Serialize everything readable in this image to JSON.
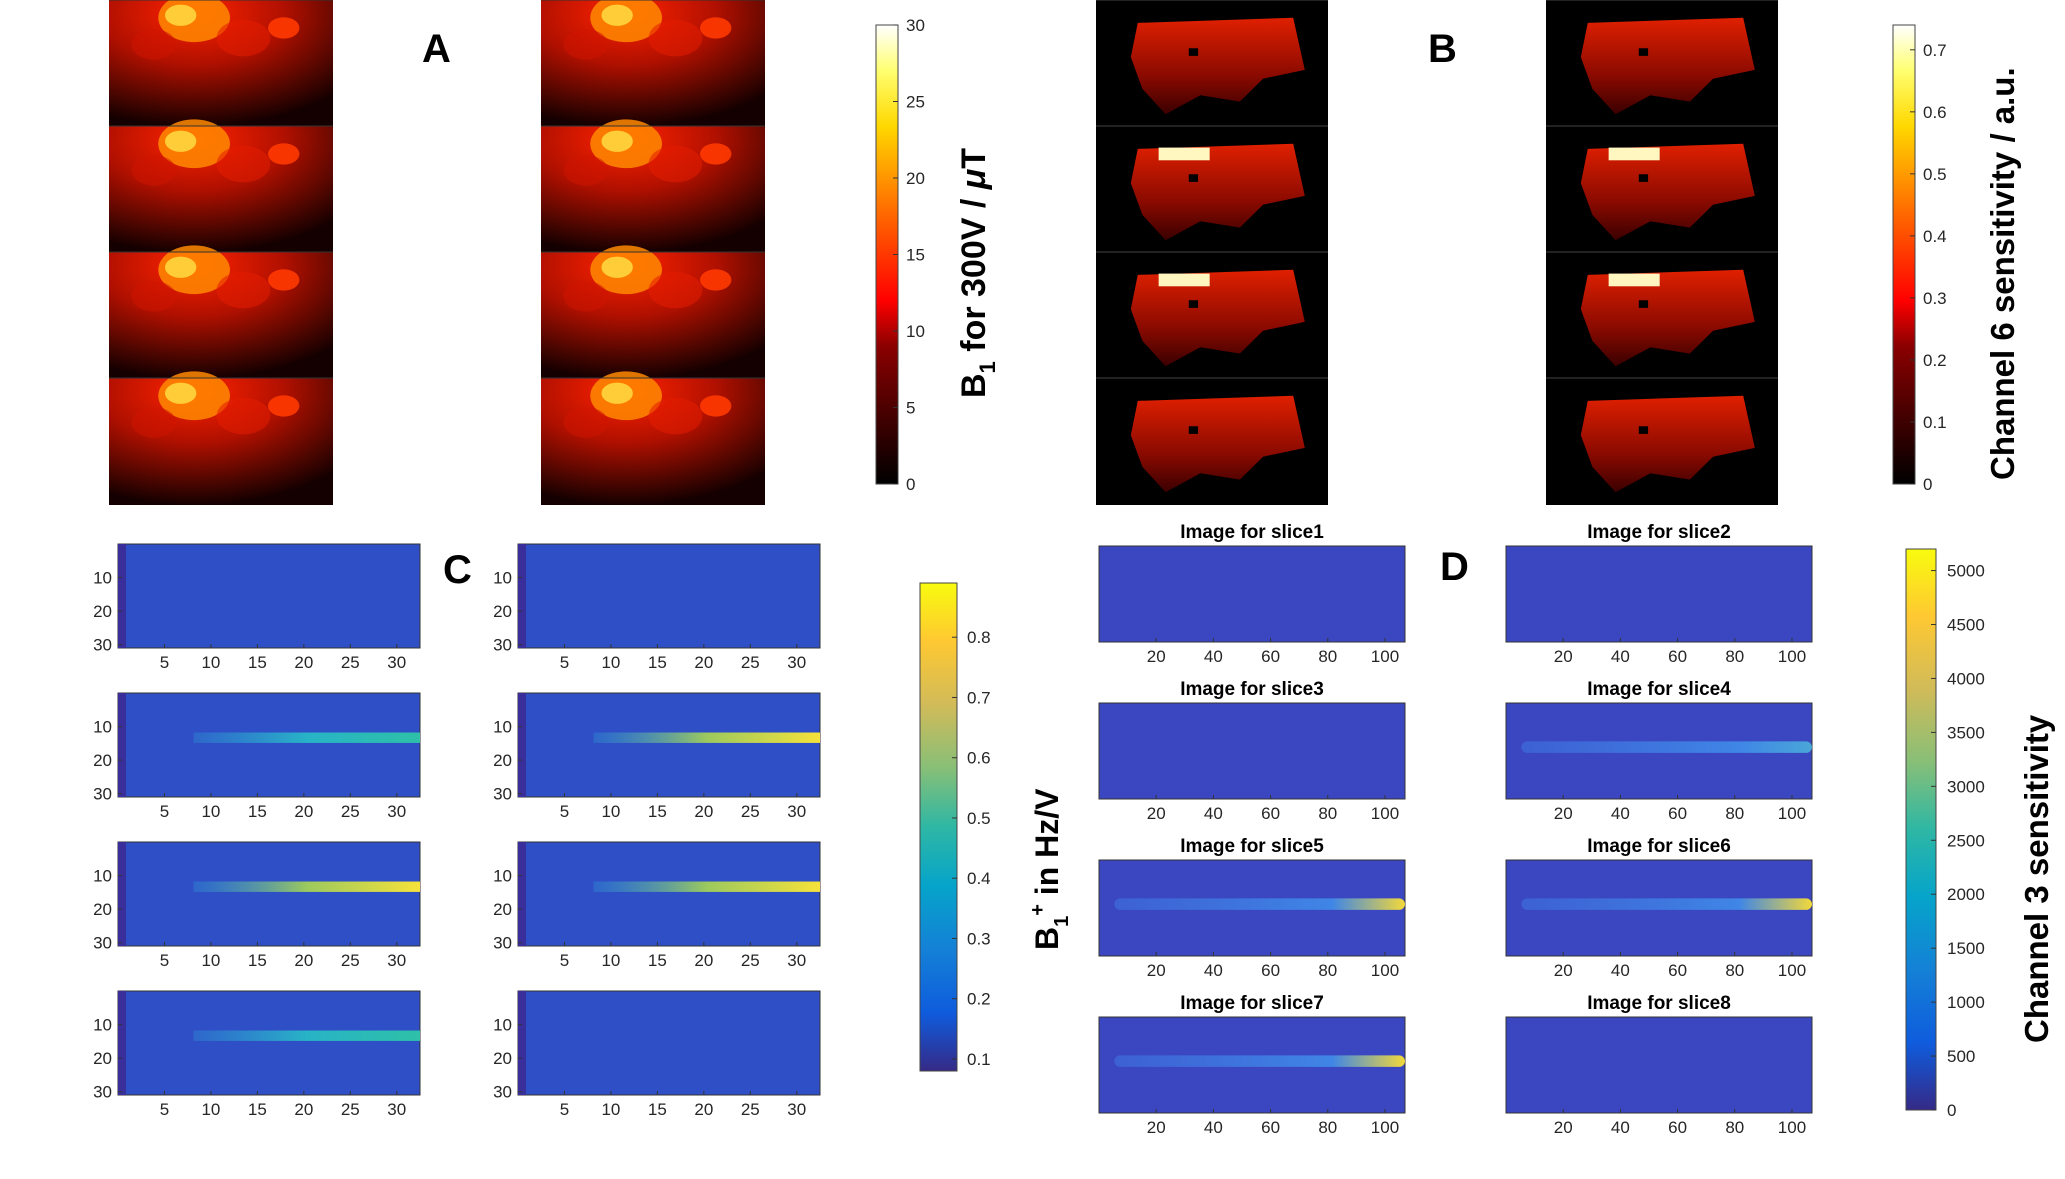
{
  "panels": {
    "A": {
      "letter": "A",
      "colorbar": {
        "ticks": [
          "0",
          "5",
          "10",
          "15",
          "20",
          "25",
          "30"
        ],
        "label_main": "B",
        "label_sub": "1",
        "label_rest": " for 300V /  ",
        "label_mu": "μ",
        "label_unit": "T",
        "range": [
          0,
          30
        ],
        "colormap": "hot"
      }
    },
    "B": {
      "letter": "B",
      "colorbar": {
        "ticks": [
          "0",
          "0.1",
          "0.2",
          "0.3",
          "0.4",
          "0.5",
          "0.6",
          "0.7"
        ],
        "label": "Channel 6 sensitivity / a.u.",
        "range": [
          0,
          0.74
        ],
        "colormap": "hot"
      }
    },
    "C": {
      "letter": "C",
      "x_ticks": [
        "5",
        "10",
        "15",
        "20",
        "25",
        "30"
      ],
      "y_ticks": [
        "10",
        "20",
        "30"
      ],
      "colorbar": {
        "ticks": [
          "0.1",
          "0.2",
          "0.3",
          "0.4",
          "0.5",
          "0.6",
          "0.7",
          "0.8"
        ],
        "label_main": "B",
        "label_sub": "1",
        "label_sup": "+",
        "label_rest": " in Hz/V",
        "range": [
          0.08,
          0.89
        ],
        "colormap": "parula"
      }
    },
    "D": {
      "letter": "D",
      "x_ticks": [
        "20",
        "40",
        "60",
        "80",
        "100"
      ],
      "slice_titles": [
        "Image for slice1",
        "Image for slice2",
        "Image for slice3",
        "Image for slice4",
        "Image for slice5",
        "Image for slice6",
        "Image for slice7",
        "Image for slice8"
      ],
      "colorbar": {
        "ticks": [
          "0",
          "500",
          "1000",
          "1500",
          "2000",
          "2500",
          "3000",
          "3500",
          "4000",
          "4500",
          "5000"
        ],
        "label": "Channel 3 sensitivity",
        "range": [
          0,
          5200
        ],
        "colormap": "parula"
      }
    }
  }
}
